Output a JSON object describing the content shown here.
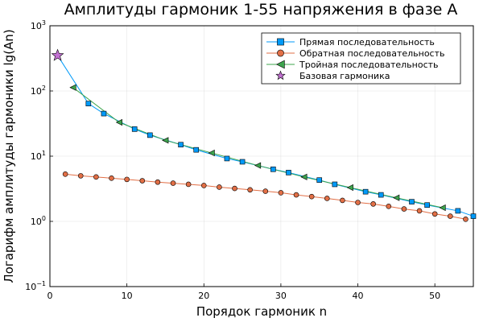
{
  "chart_data": {
    "type": "line",
    "title": "Амплитуды гармоник 1-55 напряжения в фазе A",
    "xlabel": "Порядок гармоник n",
    "ylabel": "Логарифм амплитуды гармоники lg(An)",
    "xlim": [
      0,
      55
    ],
    "ylim": [
      0.1,
      1000
    ],
    "yscale": "log",
    "grid": true,
    "legend_position": "top-right",
    "x_ticks": [
      {
        "value": 0,
        "label": "0"
      },
      {
        "value": 10,
        "label": "10"
      },
      {
        "value": 20,
        "label": "20"
      },
      {
        "value": 30,
        "label": "30"
      },
      {
        "value": 40,
        "label": "40"
      },
      {
        "value": 50,
        "label": "50"
      }
    ],
    "y_ticks": [
      {
        "value": 0.1,
        "base": "10",
        "exp": "−1"
      },
      {
        "value": 1,
        "base": "10",
        "exp": "0"
      },
      {
        "value": 10,
        "base": "10",
        "exp": "1"
      },
      {
        "value": 100,
        "base": "10",
        "exp": "2"
      },
      {
        "value": 1000,
        "base": "10",
        "exp": "3"
      }
    ],
    "series": [
      {
        "name": "Прямая последовательность",
        "color": "#009af9",
        "marker_color": "#009af9",
        "marker": "square",
        "line_from_x": 1,
        "x": [
          5,
          7,
          11,
          13,
          17,
          19,
          23,
          25,
          29,
          31,
          35,
          37,
          41,
          43,
          47,
          49,
          53,
          55
        ],
        "y": [
          64,
          45,
          26,
          21,
          15,
          12.5,
          9.2,
          8.2,
          6.3,
          5.6,
          4.3,
          3.7,
          2.85,
          2.55,
          2.0,
          1.78,
          1.45,
          1.2
        ]
      },
      {
        "name": "Обратная последовательность",
        "color": "#e26f46",
        "marker_color": "#e26f46",
        "marker": "circle",
        "x": [
          2,
          4,
          6,
          8,
          10,
          12,
          14,
          16,
          18,
          20,
          22,
          24,
          26,
          28,
          30,
          32,
          34,
          36,
          38,
          40,
          42,
          44,
          46,
          48,
          50,
          52,
          54
        ],
        "y": [
          5.3,
          5.0,
          4.8,
          4.6,
          4.4,
          4.2,
          4.0,
          3.85,
          3.7,
          3.55,
          3.35,
          3.2,
          3.05,
          2.9,
          2.75,
          2.55,
          2.4,
          2.25,
          2.1,
          1.95,
          1.85,
          1.7,
          1.55,
          1.45,
          1.3,
          1.2,
          1.08
        ]
      },
      {
        "name": "Тройная последовательность",
        "color": "#3da44d",
        "marker_color": "#3da44d",
        "marker": "triangle-left",
        "x": [
          3,
          9,
          15,
          21,
          27,
          33,
          39,
          45,
          51
        ],
        "y": [
          113,
          33,
          17.5,
          11.2,
          7.2,
          4.8,
          3.3,
          2.3,
          1.62
        ]
      },
      {
        "name": "Базовая гармоника",
        "color": "#c271d2",
        "marker_color": "#c271d2",
        "marker": "star",
        "line": false,
        "x": [
          1
        ],
        "y": [
          350
        ]
      }
    ]
  }
}
